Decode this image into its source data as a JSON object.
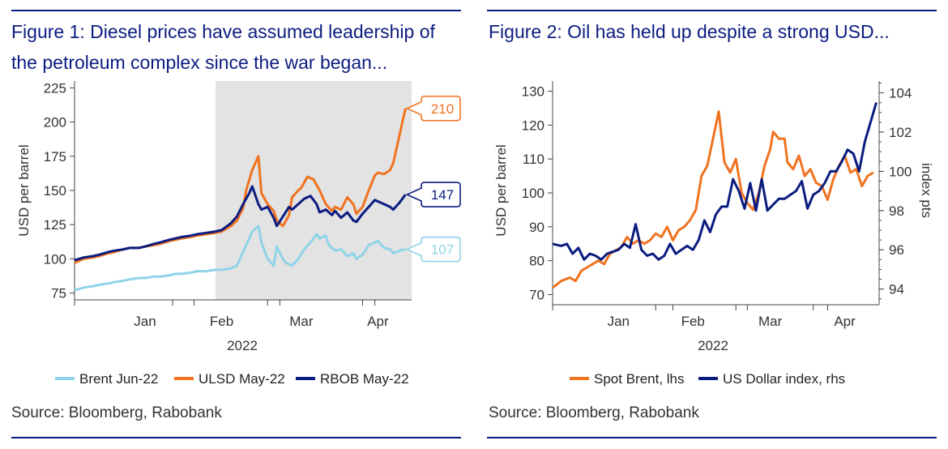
{
  "chart_data": [
    {
      "type": "line",
      "title": "Figure 1: Diesel prices have assumed leadership of the petroleum complex since the war began...",
      "xlabel": "2022",
      "ylabel": "USD per barrel",
      "x_units": "days since 1 Jan 2022",
      "xlim": [
        -8,
        102
      ],
      "ylim": [
        70,
        230
      ],
      "yticks": [
        75,
        100,
        125,
        150,
        175,
        200,
        225
      ],
      "xticks": [
        {
          "label": "Jan",
          "x": 15
        },
        {
          "label": "Feb",
          "x": 40
        },
        {
          "label": "Mar",
          "x": 66
        },
        {
          "label": "Apr",
          "x": 91
        }
      ],
      "xtick_marks": [
        -8,
        24,
        31,
        55,
        59,
        86,
        90
      ],
      "shaded_region": {
        "from": 38,
        "to": 102
      },
      "legend": "bottom",
      "series": [
        {
          "name": "Brent Jun-22",
          "color": "#8fd3e8",
          "end_label": "107",
          "x": [
            -8,
            -5,
            -2,
            0,
            3,
            5,
            8,
            10,
            13,
            15,
            18,
            20,
            23,
            25,
            27,
            30,
            32,
            35,
            38,
            40,
            43,
            45,
            47,
            49,
            50,
            52,
            53,
            55,
            57,
            58,
            60,
            61,
            63,
            65,
            67,
            69,
            71,
            72,
            74,
            75,
            77,
            79,
            81,
            83,
            84,
            86,
            88,
            90,
            91,
            93,
            95,
            96,
            98,
            100
          ],
          "y": [
            77,
            79,
            80,
            81,
            82,
            83,
            84,
            85,
            86,
            86,
            87,
            87,
            88,
            89,
            89,
            90,
            91,
            91,
            92,
            92,
            93,
            95,
            105,
            115,
            120,
            124,
            112,
            100,
            95,
            109,
            100,
            97,
            95,
            100,
            107,
            112,
            118,
            115,
            117,
            110,
            106,
            107,
            102,
            104,
            100,
            103,
            110,
            112,
            113,
            108,
            107,
            104,
            106,
            107
          ]
        },
        {
          "name": "ULSD May-22",
          "color": "#f07320",
          "end_label": "210",
          "x": [
            -8,
            -5,
            -2,
            0,
            3,
            5,
            8,
            10,
            13,
            15,
            18,
            20,
            23,
            25,
            27,
            30,
            32,
            35,
            38,
            40,
            43,
            45,
            47,
            48,
            50,
            52,
            53,
            55,
            57,
            58,
            60,
            62,
            63,
            65,
            66,
            68,
            70,
            72,
            74,
            76,
            77,
            79,
            81,
            83,
            84,
            86,
            88,
            90,
            91,
            93,
            95,
            96,
            98,
            100
          ],
          "y": [
            97,
            100,
            101,
            102,
            104,
            105,
            107,
            108,
            108,
            109,
            110,
            111,
            113,
            114,
            115,
            116,
            117,
            118,
            119,
            120,
            124,
            128,
            137,
            150,
            165,
            175,
            148,
            140,
            135,
            128,
            124,
            132,
            145,
            150,
            152,
            160,
            158,
            150,
            140,
            135,
            138,
            136,
            145,
            140,
            133,
            138,
            150,
            161,
            163,
            162,
            165,
            170,
            190,
            210
          ]
        },
        {
          "name": "RBOB May-22",
          "color": "#0b1c80",
          "end_label": "147",
          "x": [
            -8,
            -5,
            -2,
            0,
            3,
            5,
            8,
            10,
            13,
            15,
            18,
            20,
            23,
            25,
            27,
            30,
            32,
            35,
            38,
            40,
            43,
            45,
            47,
            49,
            50,
            52,
            53,
            55,
            57,
            58,
            60,
            62,
            63,
            65,
            67,
            69,
            71,
            72,
            74,
            76,
            77,
            79,
            81,
            83,
            84,
            86,
            88,
            90,
            91,
            93,
            95,
            96,
            98,
            100
          ],
          "y": [
            99,
            101,
            102,
            103,
            105,
            106,
            107,
            108,
            108,
            109,
            111,
            112,
            114,
            115,
            116,
            117,
            118,
            119,
            120,
            121,
            126,
            131,
            140,
            148,
            153,
            140,
            136,
            138,
            130,
            124,
            131,
            138,
            136,
            140,
            144,
            146,
            140,
            134,
            136,
            132,
            135,
            130,
            134,
            128,
            127,
            133,
            138,
            143,
            142,
            140,
            138,
            136,
            141,
            147
          ]
        }
      ]
    },
    {
      "type": "line",
      "title": "Figure 2: Oil has held up despite a strong USD...",
      "xlabel": "2022",
      "ylabel": "USD per barrel",
      "y2label": "index pts",
      "x_units": "days since 1 Jan 2022",
      "xlim": [
        -10,
        104
      ],
      "ylim": [
        67,
        133
      ],
      "y2lim": [
        93.2,
        104.6
      ],
      "yticks": [
        70,
        80,
        90,
        100,
        110,
        120,
        130
      ],
      "y2ticks": [
        94,
        96,
        98,
        100,
        102,
        104
      ],
      "xticks": [
        {
          "label": "Jan",
          "x": 13
        },
        {
          "label": "Feb",
          "x": 39
        },
        {
          "label": "Mar",
          "x": 66
        },
        {
          "label": "Apr",
          "x": 92
        }
      ],
      "xtick_marks": [
        -10,
        26,
        32,
        54,
        58,
        81,
        86
      ],
      "legend": "bottom",
      "series": [
        {
          "name": "Spot Brent, lhs",
          "color": "#f07320",
          "axis": "left",
          "x": [
            -10,
            -7,
            -4,
            -2,
            0,
            2,
            4,
            6,
            8,
            10,
            12,
            14,
            16,
            18,
            20,
            22,
            24,
            26,
            28,
            30,
            32,
            34,
            36,
            38,
            40,
            42,
            44,
            46,
            48,
            50,
            52,
            54,
            56,
            58,
            60,
            62,
            64,
            66,
            67,
            69,
            71,
            72,
            74,
            76,
            78,
            80,
            82,
            84,
            86,
            88,
            90,
            92,
            94,
            96,
            98,
            100,
            102
          ],
          "y": [
            72,
            74,
            75,
            74,
            77,
            78,
            79,
            80,
            79,
            82,
            83,
            84,
            87,
            85,
            86,
            85,
            86,
            88,
            87,
            90,
            86,
            89,
            90,
            92,
            95,
            105,
            108,
            116,
            124,
            109,
            106,
            110,
            100,
            97,
            95,
            100,
            108,
            113,
            118,
            116,
            116,
            109,
            107,
            111,
            105,
            107,
            103,
            102,
            98,
            104,
            108,
            111,
            106,
            107,
            102,
            105,
            106
          ]
        },
        {
          "name": "US Dollar index, rhs",
          "color": "#0b1c80",
          "axis": "right",
          "x": [
            -10,
            -7,
            -5,
            -3,
            -1,
            1,
            3,
            5,
            7,
            9,
            11,
            13,
            15,
            17,
            19,
            21,
            23,
            25,
            27,
            29,
            31,
            33,
            35,
            37,
            39,
            41,
            43,
            45,
            47,
            49,
            51,
            53,
            55,
            57,
            59,
            61,
            63,
            65,
            67,
            69,
            71,
            73,
            75,
            77,
            79,
            81,
            83,
            85,
            87,
            89,
            91,
            93,
            95,
            97,
            99,
            101,
            103
          ],
          "y": [
            96.3,
            96.2,
            96.3,
            95.8,
            96.1,
            95.5,
            95.8,
            95.7,
            95.5,
            95.8,
            95.9,
            96.0,
            96.3,
            96.1,
            97.3,
            96.0,
            95.7,
            95.8,
            95.5,
            95.7,
            96.3,
            95.8,
            96.0,
            96.2,
            96.0,
            96.5,
            97.5,
            96.9,
            97.8,
            98.2,
            98.2,
            99.6,
            99.0,
            98.1,
            99.4,
            98.0,
            99.6,
            98.0,
            98.3,
            98.6,
            98.6,
            98.8,
            99.0,
            99.5,
            98.1,
            98.8,
            99.0,
            99.4,
            100.0,
            100.0,
            100.5,
            101.1,
            100.9,
            100.0,
            101.5,
            102.5,
            103.5
          ]
        }
      ]
    }
  ],
  "fig1": {
    "title": "Figure 1: Diesel prices have assumed leadership of the petroleum complex since the war began...",
    "source": "Source: Bloomberg, Rabobank"
  },
  "fig2": {
    "title": "Figure 2: Oil has held up despite a strong USD...",
    "source": "Source: Bloomberg, Rabobank"
  }
}
